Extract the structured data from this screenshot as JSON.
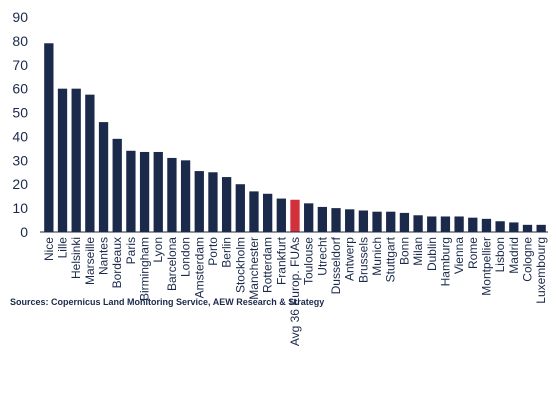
{
  "chart_data": {
    "type": "bar",
    "title": "",
    "xlabel": "",
    "ylabel": "",
    "ylim": [
      0,
      90
    ],
    "yticks": [
      0,
      10,
      20,
      30,
      40,
      50,
      60,
      70,
      80,
      90
    ],
    "grid": false,
    "legend": "none",
    "categories": [
      "Nice",
      "Lille",
      "Helsinki",
      "Marseille",
      "Nantes",
      "Bordeaux",
      "Paris",
      "Birmingham",
      "Lyon",
      "Barcelona",
      "London",
      "Amsterdam",
      "Porto",
      "Berlin",
      "Stockholm",
      "Manchester",
      "Rotterdam",
      "Frankfurt",
      "Avg 36 Europ. FUAs",
      "Toulouse",
      "Utrecht",
      "Dusseldorf",
      "Antwerp",
      "Brussels",
      "Munich",
      "Stuttgart",
      "Bonn",
      "Milan",
      "Dublin",
      "Hamburg",
      "Vienna",
      "Rome",
      "Montpellier",
      "Lisbon",
      "Madrid",
      "Cologne",
      "Luxembourg"
    ],
    "values": [
      79,
      60,
      60,
      57.5,
      46,
      39,
      34,
      33.5,
      33.5,
      31,
      30,
      25.5,
      25,
      23,
      20,
      17,
      16,
      14,
      13.5,
      12,
      10.5,
      10,
      9.5,
      9,
      8.5,
      8.5,
      8,
      7,
      6.5,
      6.5,
      6.5,
      6,
      5.5,
      4.5,
      4,
      3,
      3
    ],
    "highlight_index": 18,
    "colors": {
      "bar": "#1b2a4a",
      "highlight": "#d0313a",
      "axis": "#1b2a4a"
    }
  },
  "source_note": "Sources: Copernicus Land Monitoring Service, AEW Research & Strategy"
}
